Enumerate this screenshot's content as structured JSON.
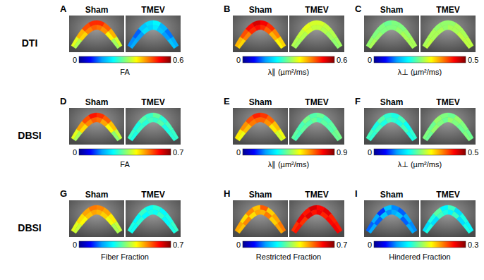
{
  "chart_data": [
    {
      "type": "heatmap",
      "title": "A",
      "annotations": [
        "DTI"
      ],
      "categories": [
        "Sham",
        "TMEV"
      ],
      "values": [
        [
          [
            0.36,
            0.42,
            0.48,
            0.5,
            0.5,
            0.47,
            0.42,
            0.35
          ],
          [
            0.33,
            0.4,
            0.45,
            0.47,
            0.46,
            0.44,
            0.38,
            0.32
          ]
        ],
        [
          [
            0.14,
            0.12,
            0.18,
            0.2,
            0.22,
            0.17,
            0.13,
            0.16
          ],
          [
            0.16,
            0.15,
            0.2,
            0.19,
            0.21,
            0.18,
            0.15,
            0.18
          ]
        ]
      ],
      "colorbar": {
        "label": "FA",
        "range": [
          0,
          0.6
        ],
        "ticks": [
          0,
          0.6
        ]
      }
    },
    {
      "type": "heatmap",
      "title": "B",
      "categories": [
        "Sham",
        "TMEV"
      ],
      "values": [
        [
          [
            0.42,
            0.48,
            0.52,
            0.55,
            0.53,
            0.5,
            0.45,
            0.4
          ],
          [
            0.4,
            0.45,
            0.5,
            0.52,
            0.5,
            0.47,
            0.42,
            0.38
          ]
        ],
        [
          [
            0.33,
            0.34,
            0.36,
            0.35,
            0.35,
            0.34,
            0.33,
            0.32
          ],
          [
            0.32,
            0.33,
            0.35,
            0.34,
            0.34,
            0.33,
            0.32,
            0.31
          ]
        ]
      ],
      "colorbar": {
        "label": "λ∥ (µm²/ms)",
        "range": [
          0,
          0.6
        ],
        "ticks": [
          0,
          0.6
        ]
      }
    },
    {
      "type": "heatmap",
      "title": "C",
      "categories": [
        "Sham",
        "TMEV"
      ],
      "values": [
        [
          [
            0.26,
            0.25,
            0.25,
            0.24,
            0.25,
            0.25,
            0.26,
            0.27
          ],
          [
            0.27,
            0.26,
            0.25,
            0.25,
            0.25,
            0.26,
            0.27,
            0.27
          ]
        ],
        [
          [
            0.27,
            0.27,
            0.26,
            0.26,
            0.26,
            0.27,
            0.27,
            0.28
          ],
          [
            0.28,
            0.27,
            0.27,
            0.26,
            0.27,
            0.27,
            0.28,
            0.28
          ]
        ]
      ],
      "colorbar": {
        "label": "λ⊥ (µm²/ms)",
        "range": [
          0,
          0.5
        ],
        "ticks": [
          0,
          0.5
        ]
      }
    },
    {
      "type": "heatmap",
      "title": "D",
      "annotations": [
        "DBSI"
      ],
      "categories": [
        "Sham",
        "TMEV"
      ],
      "values": [
        [
          [
            0.42,
            0.5,
            0.56,
            0.6,
            0.58,
            0.55,
            0.48,
            0.4
          ],
          [
            0.38,
            0.46,
            0.52,
            0.55,
            0.54,
            0.5,
            0.44,
            0.36
          ]
        ],
        [
          [
            0.3,
            0.28,
            0.32,
            0.3,
            0.33,
            0.29,
            0.31,
            0.3
          ],
          [
            0.28,
            0.3,
            0.29,
            0.31,
            0.3,
            0.32,
            0.28,
            0.29
          ]
        ]
      ],
      "colorbar": {
        "label": "FA",
        "range": [
          0,
          0.7
        ],
        "ticks": [
          0,
          0.7
        ]
      }
    },
    {
      "type": "heatmap",
      "title": "E",
      "categories": [
        "Sham",
        "TMEV"
      ],
      "values": [
        [
          [
            0.58,
            0.66,
            0.72,
            0.76,
            0.74,
            0.7,
            0.62,
            0.55
          ],
          [
            0.55,
            0.62,
            0.68,
            0.7,
            0.7,
            0.66,
            0.58,
            0.52
          ]
        ],
        [
          [
            0.42,
            0.4,
            0.44,
            0.41,
            0.43,
            0.4,
            0.42,
            0.44
          ],
          [
            0.4,
            0.42,
            0.41,
            0.43,
            0.4,
            0.42,
            0.41,
            0.43
          ]
        ]
      ],
      "colorbar": {
        "label": "λ∥ (µm²/ms)",
        "range": [
          0,
          0.9
        ],
        "ticks": [
          0,
          0.9
        ]
      }
    },
    {
      "type": "heatmap",
      "title": "F",
      "categories": [
        "Sham",
        "TMEV"
      ],
      "values": [
        [
          [
            0.22,
            0.2,
            0.23,
            0.21,
            0.2,
            0.22,
            0.19,
            0.21
          ],
          [
            0.21,
            0.22,
            0.2,
            0.22,
            0.21,
            0.2,
            0.22,
            0.2
          ]
        ],
        [
          [
            0.25,
            0.24,
            0.26,
            0.25,
            0.24,
            0.26,
            0.25,
            0.24
          ],
          [
            0.24,
            0.26,
            0.25,
            0.24,
            0.26,
            0.25,
            0.24,
            0.25
          ]
        ]
      ],
      "colorbar": {
        "label": "λ⊥ (µm²/ms)",
        "range": [
          0,
          0.5
        ],
        "ticks": [
          0,
          0.5
        ]
      }
    },
    {
      "type": "heatmap",
      "title": "G",
      "annotations": [
        "DBSI"
      ],
      "categories": [
        "Sham",
        "TMEV"
      ],
      "values": [
        [
          [
            0.42,
            0.46,
            0.5,
            0.53,
            0.52,
            0.5,
            0.45,
            0.4
          ],
          [
            0.4,
            0.44,
            0.48,
            0.5,
            0.49,
            0.47,
            0.43,
            0.38
          ]
        ],
        [
          [
            0.28,
            0.26,
            0.3,
            0.27,
            0.29,
            0.26,
            0.28,
            0.3
          ],
          [
            0.27,
            0.29,
            0.26,
            0.28,
            0.27,
            0.3,
            0.26,
            0.28
          ]
        ]
      ],
      "colorbar": {
        "label": "Fiber Fraction",
        "range": [
          0,
          0.7
        ],
        "ticks": [
          0,
          0.7
        ]
      }
    },
    {
      "type": "heatmap",
      "title": "H",
      "categories": [
        "Sham",
        "TMEV"
      ],
      "values": [
        [
          [
            0.5,
            0.46,
            0.52,
            0.48,
            0.55,
            0.47,
            0.5,
            0.53
          ],
          [
            0.48,
            0.52,
            0.46,
            0.5,
            0.49,
            0.53,
            0.47,
            0.5
          ]
        ],
        [
          [
            0.58,
            0.62,
            0.6,
            0.64,
            0.61,
            0.63,
            0.59,
            0.6
          ],
          [
            0.6,
            0.58,
            0.63,
            0.6,
            0.62,
            0.59,
            0.61,
            0.62
          ]
        ]
      ],
      "colorbar": {
        "label": "Restricted Fraction",
        "range": [
          0,
          0.7
        ],
        "ticks": [
          0,
          0.7
        ]
      }
    },
    {
      "type": "heatmap",
      "title": "I",
      "categories": [
        "Sham",
        "TMEV"
      ],
      "values": [
        [
          [
            0.06,
            0.08,
            0.05,
            0.09,
            0.07,
            0.06,
            0.08,
            0.07
          ],
          [
            0.08,
            0.06,
            0.09,
            0.07,
            0.08,
            0.09,
            0.06,
            0.08
          ]
        ],
        [
          [
            0.1,
            0.12,
            0.14,
            0.11,
            0.13,
            0.1,
            0.12,
            0.11
          ],
          [
            0.12,
            0.1,
            0.13,
            0.12,
            0.11,
            0.13,
            0.1,
            0.12
          ]
        ]
      ],
      "colorbar": {
        "label": "Hindered Fraction",
        "range": [
          0,
          0.3
        ],
        "ticks": [
          0,
          0.3
        ]
      }
    }
  ]
}
